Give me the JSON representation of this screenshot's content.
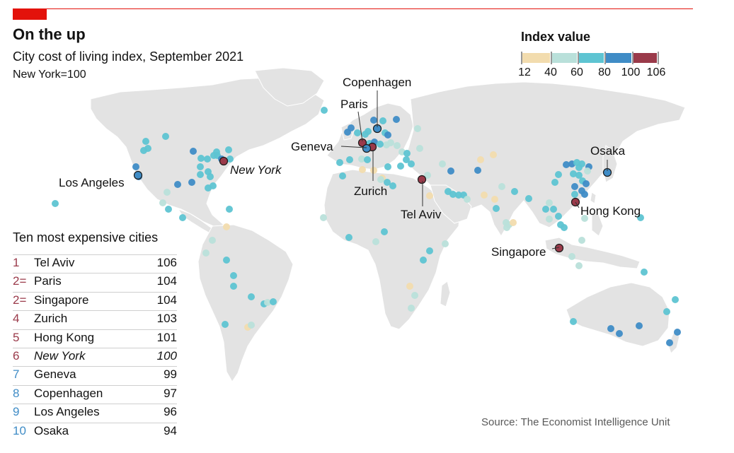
{
  "header": {
    "title": "On the up",
    "subtitle": "City cost of living index, September 2021",
    "note": "New York=100"
  },
  "legend": {
    "title": "Index value",
    "ticks": [
      "12",
      "40",
      "60",
      "80",
      "100",
      "106"
    ],
    "colors": [
      "#f2dcae",
      "#b9e0da",
      "#5ec4d2",
      "#3f8cc6",
      "#9a3a4a"
    ]
  },
  "colors": {
    "land": "#e3e3e3",
    "border": "#ffffff",
    "accent": "#e3120b",
    "rank_red": "#9a3a4a",
    "rank_blue": "#3f8cc6"
  },
  "table": {
    "title": "Ten most expensive cities",
    "rows": [
      {
        "rank": "1",
        "city": "Tel Aviv",
        "value": "106"
      },
      {
        "rank": "2=",
        "city": "Paris",
        "value": "104"
      },
      {
        "rank": "2=",
        "city": "Singapore",
        "value": "104"
      },
      {
        "rank": "4",
        "city": "Zurich",
        "value": "103"
      },
      {
        "rank": "5",
        "city": "Hong Kong",
        "value": "101"
      },
      {
        "rank": "6",
        "city": "New York",
        "value": "100"
      },
      {
        "rank": "7",
        "city": "Geneva",
        "value": "99"
      },
      {
        "rank": "8",
        "city": "Copenhagen",
        "value": "97"
      },
      {
        "rank": "9",
        "city": "Los Angeles",
        "value": "96"
      },
      {
        "rank": "10",
        "city": "Osaka",
        "value": "94"
      }
    ]
  },
  "map": {
    "labels": {
      "copenhagen": "Copenhagen",
      "paris": "Paris",
      "geneva": "Geneva",
      "zurich": "Zurich",
      "tel_aviv": "Tel Aviv",
      "new_york": "New York",
      "los_angeles": "Los Angeles",
      "osaka": "Osaka",
      "hong_kong": "Hong Kong",
      "singapore": "Singapore"
    }
  },
  "source": "Source: The Economist Intelligence Unit"
}
